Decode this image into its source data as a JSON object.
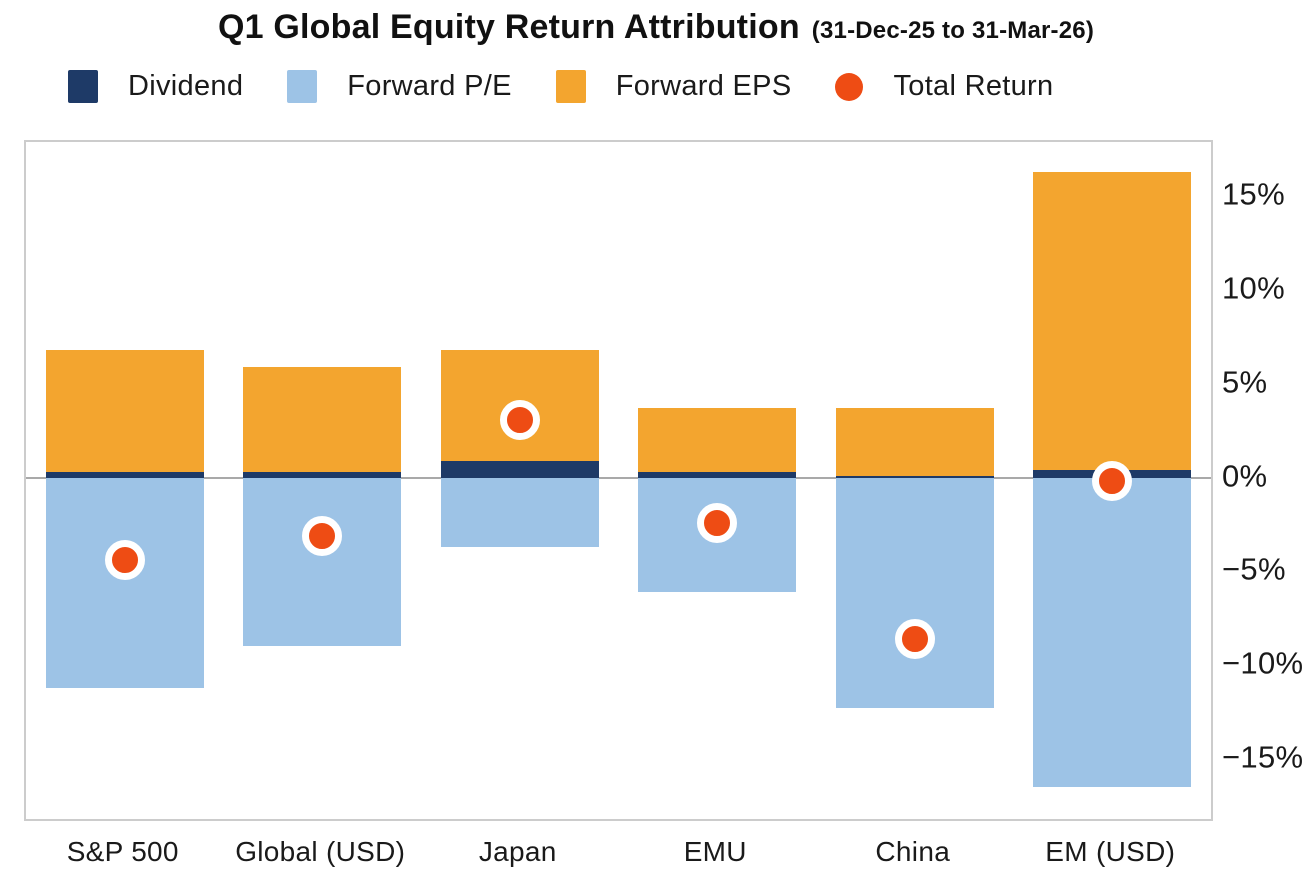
{
  "title": {
    "main": "Q1 Global Equity Return Attribution",
    "subtitle": "(31-Dec-25 to 31-Mar-26)"
  },
  "legend": {
    "items": [
      {
        "label": "Dividend",
        "color": "#1E3A67",
        "shape": "square"
      },
      {
        "label": "Forward P/E",
        "color": "#9DC3E6",
        "shape": "square"
      },
      {
        "label": "Forward EPS",
        "color": "#F3A52F",
        "shape": "square"
      },
      {
        "label": "Total Return",
        "color": "#EE4C14",
        "shape": "circle"
      }
    ]
  },
  "chart_data": {
    "type": "bar",
    "stacked": true,
    "title": "Q1 Global Equity Return Attribution (31-Dec-25 to 31-Mar-26)",
    "categories": [
      "S&P 500",
      "Global (USD)",
      "Japan",
      "EMU",
      "China",
      "EM (USD)"
    ],
    "series": [
      {
        "name": "Dividend",
        "color": "#1E3A67",
        "values": [
          0.3,
          0.3,
          0.9,
          0.3,
          0.1,
          0.4
        ]
      },
      {
        "name": "Forward P/E",
        "color": "#9DC3E6",
        "values": [
          -11.2,
          -9.0,
          -3.7,
          -6.1,
          -12.3,
          -16.5
        ]
      },
      {
        "name": "Forward EPS",
        "color": "#F3A52F",
        "values": [
          6.5,
          5.6,
          5.9,
          3.4,
          3.6,
          15.9
        ]
      }
    ],
    "markers": {
      "name": "Total Return",
      "color": "#EE4C14",
      "values": [
        -4.4,
        -3.1,
        3.1,
        -2.4,
        -8.6,
        -0.2
      ]
    },
    "y_ticks": [
      {
        "value": 15,
        "label": "15%"
      },
      {
        "value": 10,
        "label": "10%"
      },
      {
        "value": 5,
        "label": "5%"
      },
      {
        "value": 0,
        "label": "0%"
      },
      {
        "value": -5,
        "label": "−5%"
      },
      {
        "value": -10,
        "label": "−10%"
      },
      {
        "value": -15,
        "label": "−15%"
      }
    ],
    "ylim": [
      -18.2,
      17.9
    ],
    "xlabel": "",
    "ylabel": "",
    "grid": "zero-line-only",
    "legend_position": "top",
    "zero_line_color": "#A9A9A9",
    "plot_border_color": "#CCCCCC"
  }
}
